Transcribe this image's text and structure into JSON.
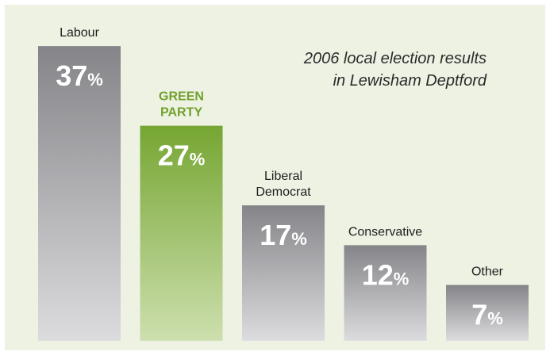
{
  "chart_data": {
    "type": "bar",
    "title_lines": [
      "2006 local election results",
      "in Lewisham Deptford"
    ],
    "categories": [
      {
        "lines": [
          "Labour"
        ],
        "color": "normal"
      },
      {
        "lines": [
          "GREEN",
          "PARTY"
        ],
        "color": "green"
      },
      {
        "lines": [
          "Liberal",
          "Democrat"
        ],
        "color": "normal"
      },
      {
        "lines": [
          "Conservative"
        ],
        "color": "normal"
      },
      {
        "lines": [
          "Other"
        ],
        "color": "normal"
      }
    ],
    "values": [
      37,
      27,
      17,
      12,
      7
    ],
    "value_suffix": "%",
    "ylim": [
      0,
      40
    ],
    "xlabel": "",
    "ylabel": "",
    "grid": false,
    "legend": "none",
    "colors": {
      "bar_top": "#858589",
      "bar_bottom": "#dcdcdf",
      "green_top": "#76a632",
      "green_bottom": "#cddfae",
      "label_text": "#1e1e1e",
      "green_label_text": "#72a02e",
      "value_text": "#ffffff",
      "background": "#edf2e3"
    }
  }
}
